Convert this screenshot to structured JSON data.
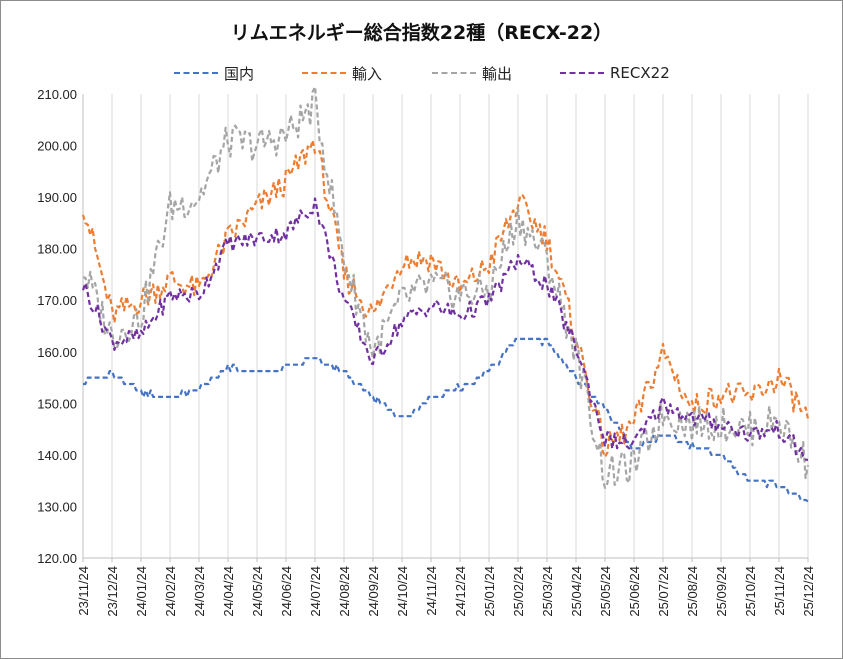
{
  "chart_data": {
    "type": "line",
    "title": "リムエネルギー総合指数22種（RECX-22）",
    "xlabel": "",
    "ylabel": "",
    "ylim": [
      120,
      210
    ],
    "yticks": [
      "120.00",
      "130.00",
      "140.00",
      "150.00",
      "160.00",
      "170.00",
      "180.00",
      "190.00",
      "200.00",
      "210.00"
    ],
    "x_tick_labels": [
      "23/11/24",
      "23/12/24",
      "24/01/24",
      "24/02/24",
      "24/03/24",
      "24/04/24",
      "24/05/24",
      "24/06/24",
      "24/07/24",
      "24/08/24",
      "24/09/24",
      "24/10/24",
      "24/11/24",
      "24/12/24",
      "25/01/24",
      "25/02/24",
      "25/03/24",
      "25/04/24",
      "25/05/24",
      "25/06/24",
      "25/07/24",
      "25/08/24",
      "25/09/24",
      "25/10/24",
      "25/11/24",
      "25/12/24"
    ],
    "grid": "vertical",
    "legend_position": "top",
    "series": [
      {
        "name": "国内",
        "color": "#4472C4",
        "values": [
          154,
          156,
          152,
          151,
          153,
          157,
          156,
          157,
          159,
          156,
          151,
          147,
          151,
          153,
          156,
          163,
          162,
          155,
          149,
          141,
          144,
          142,
          140,
          135,
          134,
          131
        ]
      },
      {
        "name": "輸入",
        "color": "#ED7D31",
        "values": [
          189,
          167,
          170,
          174,
          172,
          182,
          188,
          193,
          201,
          175,
          167,
          178,
          178,
          172,
          177,
          189,
          182,
          163,
          141,
          146,
          160,
          149,
          152,
          151,
          155,
          147
        ]
      },
      {
        "name": "輸出",
        "color": "#A5A5A5",
        "values": [
          176,
          163,
          167,
          188,
          190,
          201,
          200,
          202,
          208,
          178,
          160,
          170,
          173,
          171,
          172,
          186,
          178,
          160,
          136,
          138,
          148,
          146,
          146,
          145,
          147,
          138
        ]
      },
      {
        "name": "RECX22",
        "color": "#7030A0",
        "values": [
          173,
          162,
          163,
          171,
          171,
          181,
          182,
          183,
          189,
          170,
          158,
          166,
          169,
          167,
          170,
          178,
          173,
          161,
          143,
          142,
          150,
          147,
          146,
          144,
          145,
          139
        ]
      }
    ]
  }
}
